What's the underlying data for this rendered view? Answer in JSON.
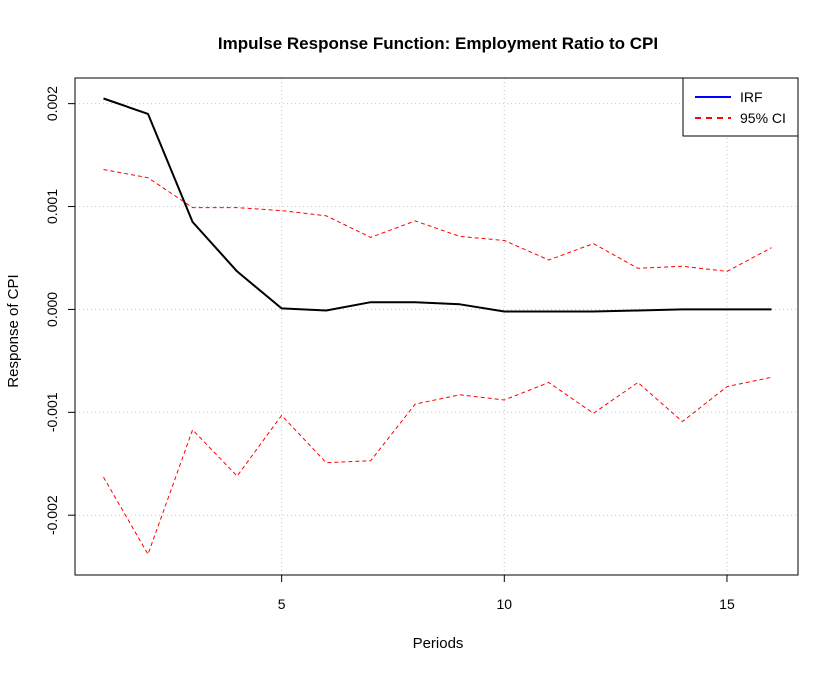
{
  "chart_data": {
    "type": "line",
    "title": "Impulse Response Function: Employment Ratio to CPI",
    "xlabel": "Periods",
    "ylabel": "Response of CPI",
    "xlim": [
      1,
      16
    ],
    "ylim": [
      -0.00245,
      0.00205
    ],
    "x_ticks": [
      5,
      10,
      15
    ],
    "x_tick_labels": [
      "5",
      "10",
      "15"
    ],
    "y_ticks": [
      -0.002,
      -0.001,
      0.0,
      0.001,
      0.002
    ],
    "y_tick_labels": [
      "-0.002",
      "-0.001",
      "0.000",
      "0.001",
      "0.002"
    ],
    "grid": true,
    "legend_position": "top-right",
    "x": [
      1,
      2,
      3,
      4,
      5,
      6,
      7,
      8,
      9,
      10,
      11,
      12,
      13,
      14,
      15,
      16
    ],
    "series": [
      {
        "name": "IRF",
        "legend_color": "#0000ff",
        "color": "#000000",
        "style": "solid",
        "values": [
          0.00205,
          0.0019,
          0.00085,
          0.00037,
          1e-05,
          -1e-05,
          7e-05,
          7e-05,
          5e-05,
          -2e-05,
          -2e-05,
          -2e-05,
          -1e-05,
          0.0,
          0.0,
          0.0
        ]
      },
      {
        "name": "95% CI",
        "color": "#ff0000",
        "style": "dashed",
        "values": [
          0.00136,
          0.00128,
          0.00099,
          0.00099,
          0.00096,
          0.00091,
          0.0007,
          0.00086,
          0.00071,
          0.00067,
          0.00048,
          0.00064,
          0.0004,
          0.00042,
          0.00037,
          0.0006
        ]
      },
      {
        "name": "",
        "color": "#ff0000",
        "style": "dashed",
        "values": [
          -0.00163,
          -0.00238,
          -0.00117,
          -0.00162,
          -0.00103,
          -0.00149,
          -0.00147,
          -0.00092,
          -0.00083,
          -0.00088,
          -0.00071,
          -0.00101,
          -0.00071,
          -0.00109,
          -0.00075,
          -0.00066
        ]
      }
    ]
  }
}
